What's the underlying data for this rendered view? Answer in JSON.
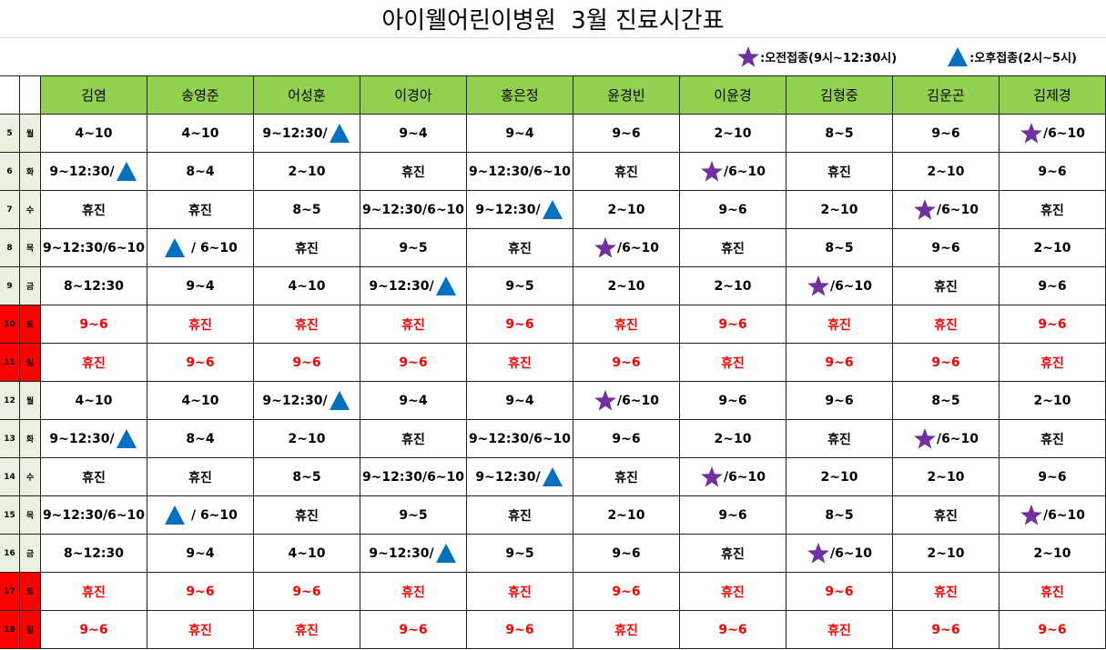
{
  "title": "아이웰어린이병원  3월 진료시간표",
  "legend": [
    {
      "icon": "star",
      "text": ":오전접종(9시~12:30시)"
    },
    {
      "icon": "triangle",
      "text": ":오후접종(2시~5시)"
    }
  ],
  "header": {
    "doctors": [
      "김염",
      "송영준",
      "어성훈",
      "이경아",
      "홍은정",
      "윤경빈",
      "이윤경",
      "김형중",
      "김운곤",
      "김제경"
    ]
  },
  "rows": [
    {
      "day": "5",
      "weekday": "월",
      "cells": [
        "4~10",
        "4~10",
        {
          "icon": "triangle",
          "side": "right",
          "text": "9~12:30/"
        },
        "9~4",
        "9~4",
        "9~6",
        "2~10",
        "8~5",
        "9~6",
        {
          "icon": "star",
          "side": "left",
          "text": "/6~10"
        }
      ]
    },
    {
      "day": "6",
      "weekday": "화",
      "cells": [
        {
          "icon": "triangle",
          "side": "right",
          "text": "9~12:30/"
        },
        "8~4",
        "2~10",
        "휴진",
        "9~12:30/6~10",
        "휴진",
        {
          "icon": "star",
          "side": "left",
          "text": "/6~10"
        },
        "휴진",
        "2~10",
        "9~6"
      ]
    },
    {
      "day": "7",
      "weekday": "수",
      "cells": [
        "휴진",
        "휴진",
        "8~5",
        "9~12:30/6~10",
        {
          "icon": "triangle",
          "side": "right",
          "text": "9~12:30/"
        },
        "2~10",
        "9~6",
        "2~10",
        {
          "icon": "star",
          "side": "left",
          "text": "/6~10"
        },
        "휴진"
      ]
    },
    {
      "day": "8",
      "weekday": "목",
      "cells": [
        "9~12:30/6~10",
        {
          "icon": "triangle",
          "side": "left",
          "text": " / 6~10"
        },
        "휴진",
        "9~5",
        "휴진",
        {
          "icon": "star",
          "side": "left",
          "text": "/6~10"
        },
        "휴진",
        "8~5",
        "9~6",
        "2~10"
      ]
    },
    {
      "day": "9",
      "weekday": "금",
      "cells": [
        "8~12:30",
        "9~4",
        "4~10",
        {
          "icon": "triangle",
          "side": "right",
          "text": "9~12:30/"
        },
        "9~5",
        "2~10",
        "2~10",
        {
          "icon": "star",
          "side": "left",
          "text": "/6~10"
        },
        "휴진",
        "9~6"
      ]
    },
    {
      "day": "10",
      "weekday": "토",
      "color": "#ff0000",
      "cells": [
        "9~6",
        "휴진",
        "휴진",
        "휴진",
        "9~6",
        "휴진",
        "9~6",
        "휴진",
        "휴진",
        "9~6"
      ]
    },
    {
      "day": "11",
      "weekday": "일",
      "color": "#ff0000",
      "cells": [
        "휴진",
        "9~6",
        "9~6",
        "9~6",
        "휴진",
        "9~6",
        "휴진",
        "9~6",
        "9~6",
        "휴진"
      ]
    },
    {
      "day": "12",
      "weekday": "월",
      "cells": [
        "4~10",
        "4~10",
        {
          "icon": "triangle",
          "side": "right",
          "text": "9~12:30/"
        },
        "9~4",
        "9~4",
        {
          "icon": "star",
          "side": "left",
          "text": "/6~10"
        },
        "9~6",
        "9~6",
        "8~5",
        "2~10"
      ]
    },
    {
      "day": "13",
      "weekday": "화",
      "cells": [
        {
          "icon": "triangle",
          "side": "right",
          "text": "9~12:30/"
        },
        "8~4",
        "2~10",
        "휴진",
        "9~12:30/6~10",
        "9~6",
        "2~10",
        "휴진",
        {
          "icon": "star",
          "side": "left",
          "text": "/6~10"
        },
        "휴진"
      ]
    },
    {
      "day": "14",
      "weekday": "수",
      "cells": [
        "휴진",
        "휴진",
        "8~5",
        "9~12:30/6~10",
        {
          "icon": "triangle",
          "side": "right",
          "text": "9~12:30/"
        },
        "휴진",
        {
          "icon": "star",
          "side": "left",
          "text": "/6~10"
        },
        "2~10",
        "2~10",
        "9~6"
      ]
    },
    {
      "day": "15",
      "weekday": "목",
      "cells": [
        "9~12:30/6~10",
        {
          "icon": "triangle",
          "side": "left",
          "text": " / 6~10"
        },
        "휴진",
        "9~5",
        "휴진",
        "2~10",
        "9~6",
        "8~5",
        "휴진",
        {
          "icon": "star",
          "side": "left",
          "text": "/6~10"
        }
      ]
    },
    {
      "day": "16",
      "weekday": "금",
      "cells": [
        "8~12:30",
        "9~4",
        "4~10",
        {
          "icon": "triangle",
          "side": "right",
          "text": "9~12:30/"
        },
        "9~5",
        "9~6",
        "휴진",
        {
          "icon": "star",
          "side": "left",
          "text": "/6~10"
        },
        "2~10",
        "2~10"
      ]
    },
    {
      "day": "17",
      "weekday": "토",
      "color": "#ff0000",
      "cells": [
        "휴진",
        "9~6",
        "9~6",
        "휴진",
        "휴진",
        "9~6",
        "휴진",
        "9~6",
        "휴진",
        "휴진"
      ]
    },
    {
      "day": "18",
      "weekday": "일",
      "color": "#ff0000",
      "cells": [
        "9~6",
        "휴진",
        "휴진",
        "9~6",
        "9~6",
        "휴진",
        "9~6",
        "휴진",
        "9~6",
        "9~6"
      ]
    }
  ]
}
